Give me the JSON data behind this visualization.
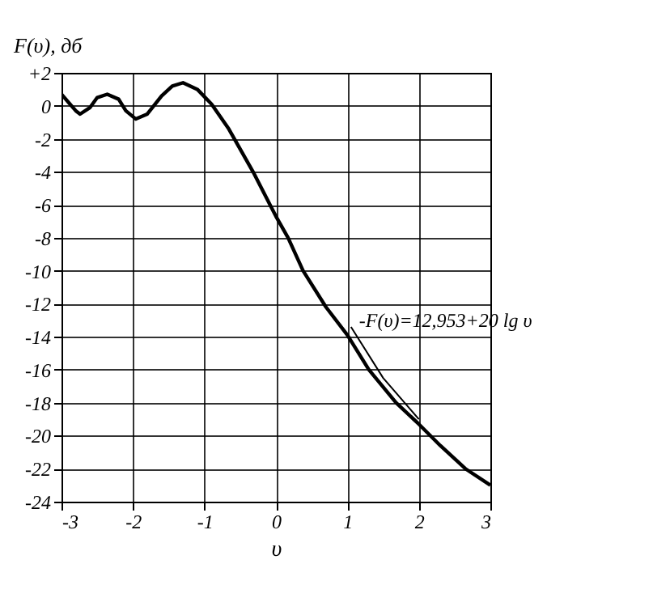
{
  "chart_data": {
    "type": "line",
    "xlabel": "υ",
    "ylabel": "F(υ), дб",
    "xlim": [
      -3,
      3
    ],
    "xticks": [
      -3,
      -2,
      -1,
      0,
      1,
      2,
      3
    ],
    "ylim": [
      -24,
      2
    ],
    "yticks": [
      {
        "value": 2,
        "label": "+2"
      },
      0,
      -2,
      -4,
      -6,
      -8,
      -10,
      -12,
      -14,
      -16,
      -18,
      -20,
      -22,
      -24
    ],
    "grid": true,
    "marker": "none",
    "line_style": "solid",
    "series": [
      {
        "color": "#000000",
        "x": [
          -3,
          -2.9,
          -2.8,
          -2.74,
          -2.6,
          -2.5,
          -2.36,
          -2.2,
          -2.1,
          -1.96,
          -1.8,
          -1.6,
          -1.45,
          -1.3,
          -1.1,
          -0.9,
          -0.66,
          -0.32,
          0,
          0.17,
          0.38,
          0.7,
          1,
          1.3,
          1.68,
          2,
          2.3,
          2.65,
          3
        ],
        "values": [
          0.7,
          0.2,
          -0.3,
          -0.5,
          -0.1,
          0.5,
          0.7,
          0.4,
          -0.3,
          -0.8,
          -0.5,
          0.6,
          1.2,
          1.4,
          1,
          0.1,
          -1.4,
          -4,
          -6.7,
          -8,
          -10,
          -12.2,
          -13.9,
          -16,
          -18,
          -19.3,
          -20.6,
          -22,
          -23
        ]
      },
      {
        "name": "-F(υ)=12,953+20 lg υ",
        "color": "#000000",
        "x": [
          1.05,
          1.5,
          2
        ],
        "values": [
          -13.4,
          -16.5,
          -19
        ]
      }
    ]
  }
}
